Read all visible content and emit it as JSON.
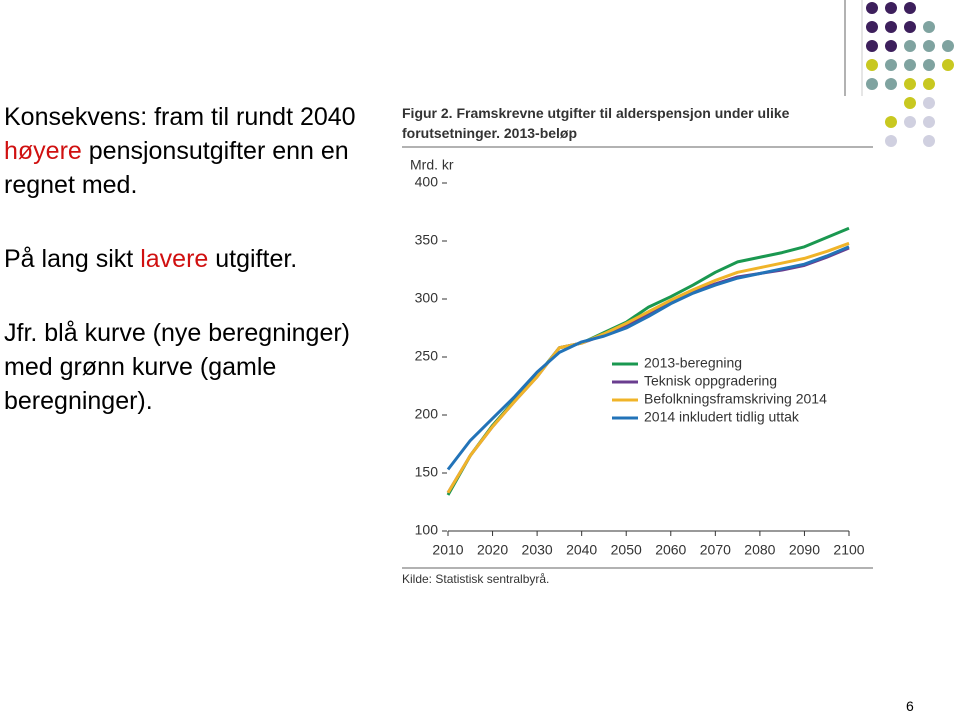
{
  "slide": {
    "paragraphs": [
      {
        "parts": [
          "Konsekvens: fram til rundt 2040",
          "høyere",
          "pensjonsutgifter enn en regnet med."
        ]
      },
      {
        "parts": [
          "På lang sikt",
          "lavere",
          "utgifter."
        ]
      },
      {
        "parts": [
          "Jfr. blå kurve (nye beregninger) med grønn kurve (gamle beregninger)."
        ]
      }
    ],
    "page_number": "6"
  },
  "chart_data": {
    "type": "line",
    "title": "Figur 2. Framskrevne utgifter til alderspensjon under ulike forutsetninger. 2013-beløp",
    "y_label": "Mrd. kr",
    "source": "Kilde: Statistisk sentralbyrå.",
    "x": [
      2010,
      2015,
      2020,
      2025,
      2030,
      2035,
      2040,
      2045,
      2050,
      2055,
      2060,
      2065,
      2070,
      2075,
      2080,
      2085,
      2090,
      2095,
      2100
    ],
    "xlim": [
      2010,
      2100
    ],
    "xticks": [
      2010,
      2020,
      2030,
      2040,
      2050,
      2060,
      2070,
      2080,
      2090,
      2100
    ],
    "ylim": [
      100,
      400
    ],
    "yticks": [
      100,
      150,
      200,
      250,
      300,
      350,
      400
    ],
    "series": [
      {
        "name": "2013-beregning",
        "color": "#1a9850",
        "values": [
          131,
          165,
          191,
          213,
          234,
          258,
          262,
          271,
          280,
          293,
          302,
          312,
          323,
          332,
          336,
          340,
          345,
          353,
          361
        ]
      },
      {
        "name": "Teknisk oppgradering",
        "color": "#6a3d8f",
        "values": [
          133,
          165,
          190,
          212,
          233,
          258,
          262,
          269,
          277,
          287,
          297,
          306,
          313,
          319,
          322,
          325,
          329,
          336,
          344
        ]
      },
      {
        "name": "Befolkningsframskriving 2014",
        "color": "#f0b429",
        "values": [
          133,
          165,
          190,
          212,
          233,
          258,
          262,
          270,
          279,
          289,
          299,
          308,
          316,
          323,
          327,
          331,
          335,
          341,
          348
        ]
      },
      {
        "name": "2014 inkludert tidlig uttak",
        "color": "#2273b8",
        "values": [
          153,
          178,
          197,
          216,
          237,
          254,
          263,
          268,
          275,
          285,
          296,
          305,
          312,
          318,
          322,
          326,
          330,
          337,
          345
        ]
      }
    ]
  }
}
